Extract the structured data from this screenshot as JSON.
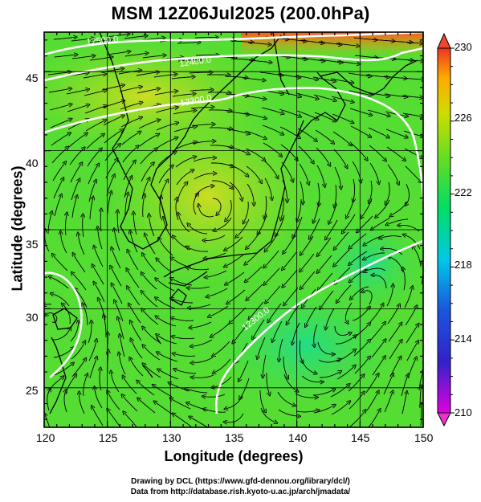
{
  "title": "MSM 12Z06Jul2025 (200.0hPa)",
  "axes": {
    "x": {
      "label": "Longitude (degrees)",
      "min": 120,
      "max": 150,
      "ticks": [
        "120",
        "125",
        "130",
        "135",
        "140",
        "145",
        "150"
      ]
    },
    "y": {
      "label": "Latitude  (degrees)",
      "min": 22.5,
      "max": 47.5,
      "ticks": [
        "25",
        "30",
        "35",
        "40",
        "45"
      ]
    }
  },
  "colorbar": {
    "min": 210,
    "max": 230,
    "ticks": [
      "230",
      "226",
      "222",
      "218",
      "214",
      "210"
    ],
    "colors": [
      "#e000e0",
      "#1a1acc",
      "#00aaee",
      "#00e070",
      "#66dd22",
      "#ccdd00",
      "#ffaa00",
      "#ee3322"
    ]
  },
  "contours": [
    {
      "label": "12500.0"
    },
    {
      "label": "12400.0"
    },
    {
      "label": "12300.0"
    },
    {
      "label": "12300.0"
    }
  ],
  "credits": {
    "line1": "Drawing by DCL (https://www.gfd-dennou.org/library/dcl/)",
    "line2": "Data from http://database.rish.kyoto-u.ac.jp/arch/jmadata/"
  }
}
